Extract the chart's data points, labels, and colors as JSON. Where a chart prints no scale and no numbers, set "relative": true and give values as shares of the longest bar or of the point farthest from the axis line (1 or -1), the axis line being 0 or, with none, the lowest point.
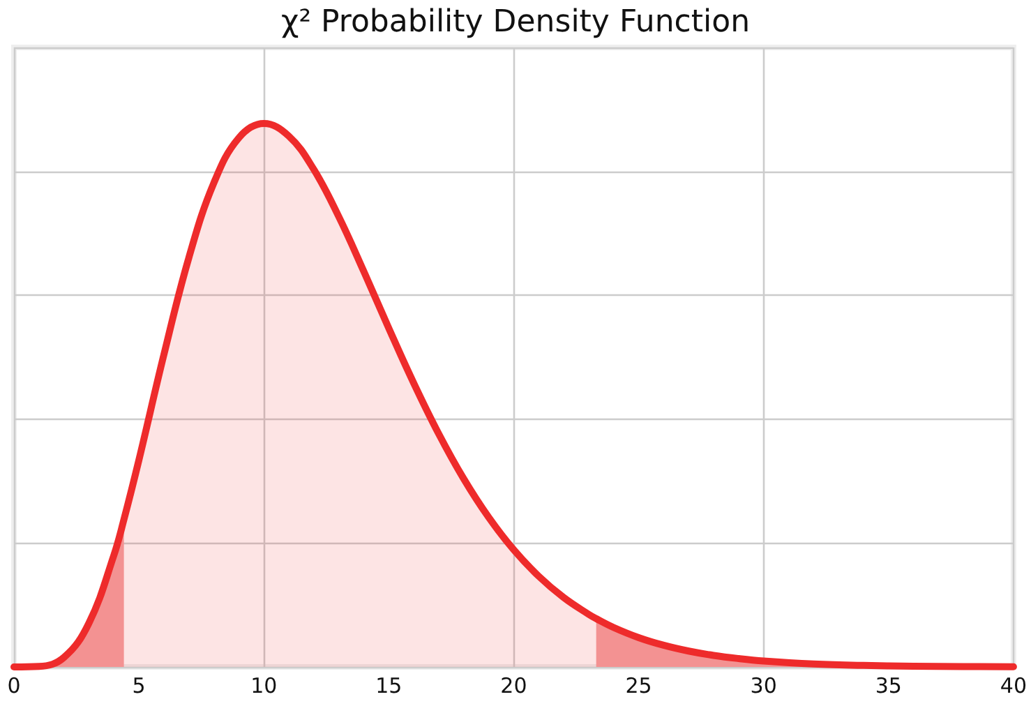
{
  "chart_data": {
    "type": "area",
    "title": "χ² Probability Density Function",
    "relative": true,
    "xlim": [
      0,
      40
    ],
    "xticks": [
      0,
      5,
      10,
      15,
      20,
      25,
      30,
      35,
      40
    ],
    "grid": true,
    "marker": "none",
    "series": [
      {
        "color": "#f4a1a1",
        "x": [
          0,
          1,
          2,
          3,
          4,
          4.4
        ],
        "values": [
          0,
          0.0009,
          0.0175,
          0.0805,
          0.2057,
          0.2712
        ]
      },
      {
        "color": "#f4a1a1",
        "x": [
          23.3,
          24,
          25,
          26,
          27,
          28,
          29,
          30,
          32,
          34,
          36,
          38,
          40
        ],
        "values": [
          0.0889,
          0.0726,
          0.054,
          0.0399,
          0.0292,
          0.0212,
          0.0154,
          0.011,
          0.0056,
          0.0028,
          0.0014,
          0.0007,
          0.0003
        ]
      },
      {
        "color": "#ee2b2b",
        "x": [
          0,
          1,
          2,
          3,
          4,
          4.4,
          5,
          6,
          7,
          8,
          9,
          10,
          11,
          12,
          13,
          14,
          15,
          16,
          17,
          18,
          19,
          20,
          21,
          22,
          23,
          23.3,
          24,
          25,
          26,
          27,
          28,
          29,
          30,
          32,
          34,
          36,
          38,
          40
        ],
        "values": [
          0,
          0.0009,
          0.0175,
          0.0805,
          0.2057,
          0.2712,
          0.3807,
          0.5746,
          0.7532,
          0.8907,
          0.9736,
          1,
          0.9768,
          0.9154,
          0.8285,
          0.7279,
          0.6233,
          0.5221,
          0.4288,
          0.3461,
          0.2751,
          0.2156,
          0.1669,
          0.1277,
          0.0968,
          0.0889,
          0.0726,
          0.054,
          0.0399,
          0.0292,
          0.0212,
          0.0154,
          0.011,
          0.0056,
          0.0028,
          0.0014,
          0.0007,
          0.0003
        ]
      }
    ]
  }
}
